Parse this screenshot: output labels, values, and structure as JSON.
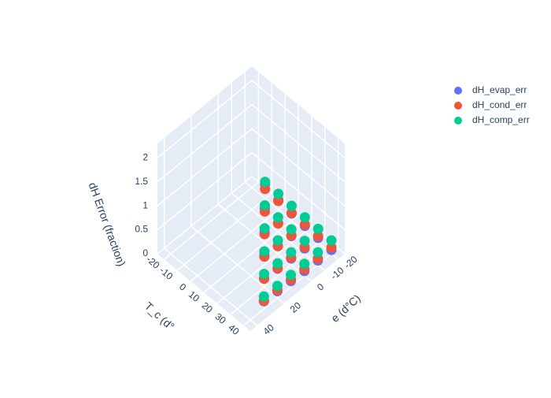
{
  "chart_data": {
    "type": "scatter3d",
    "zlabel": "dH Error (fraction)",
    "ylabel": "T_c (d°",
    "xlabel": "e (d°C)",
    "xticks": [
      -20,
      -10,
      0,
      20,
      40
    ],
    "yticks": [
      -20,
      -10,
      0,
      10,
      20,
      30,
      40
    ],
    "zticks": [
      0,
      0.5,
      1,
      1.5,
      2
    ],
    "xlim": [
      -25,
      45
    ],
    "ylim": [
      -25,
      45
    ],
    "zlim": [
      0,
      2.3
    ],
    "series": [
      {
        "name": "dH_evap_err",
        "color": "#636efa",
        "x": [
          -20,
          -20,
          -20,
          -20,
          -20,
          -20,
          -10,
          -10,
          -10,
          -10,
          -10,
          0,
          0,
          0,
          0,
          10,
          10,
          10,
          20,
          20,
          30
        ],
        "y": [
          -10,
          0,
          10,
          20,
          30,
          40,
          0,
          10,
          20,
          30,
          40,
          10,
          20,
          30,
          40,
          20,
          30,
          40,
          30,
          40,
          40
        ],
        "z": [
          0.3,
          0.2,
          0.15,
          0.12,
          0.1,
          0.08,
          0.25,
          0.18,
          0.14,
          0.11,
          0.09,
          0.22,
          0.16,
          0.13,
          0.1,
          0.2,
          0.15,
          0.12,
          0.18,
          0.14,
          0.16
        ]
      },
      {
        "name": "dH_cond_err",
        "color": "#ef553b",
        "x": [
          -20,
          -20,
          -20,
          -20,
          -20,
          -20,
          -10,
          -10,
          -10,
          -10,
          -10,
          0,
          0,
          0,
          0,
          10,
          10,
          10,
          20,
          20,
          30
        ],
        "y": [
          -10,
          0,
          10,
          20,
          30,
          40,
          0,
          10,
          20,
          30,
          40,
          10,
          20,
          30,
          40,
          20,
          30,
          40,
          30,
          40,
          40
        ],
        "z": [
          0.2,
          0.18,
          0.16,
          0.15,
          0.14,
          0.13,
          0.19,
          0.17,
          0.15,
          0.14,
          0.13,
          0.18,
          0.16,
          0.15,
          0.14,
          0.17,
          0.16,
          0.15,
          0.17,
          0.16,
          0.17
        ]
      },
      {
        "name": "dH_comp_err",
        "color": "#00cc96",
        "x": [
          -20,
          -20,
          -20,
          -20,
          -20,
          -20,
          -10,
          -10,
          -10,
          -10,
          -10,
          0,
          0,
          0,
          0,
          10,
          10,
          10,
          20,
          20,
          30
        ],
        "y": [
          -10,
          0,
          10,
          20,
          30,
          40,
          0,
          10,
          20,
          30,
          40,
          10,
          20,
          30,
          40,
          20,
          30,
          40,
          30,
          40,
          40
        ],
        "z": [
          0.35,
          0.33,
          0.31,
          0.3,
          0.29,
          0.28,
          0.32,
          0.3,
          0.28,
          0.27,
          0.26,
          0.3,
          0.28,
          0.26,
          0.25,
          0.28,
          0.26,
          0.25,
          0.27,
          0.25,
          0.26
        ]
      }
    ]
  }
}
